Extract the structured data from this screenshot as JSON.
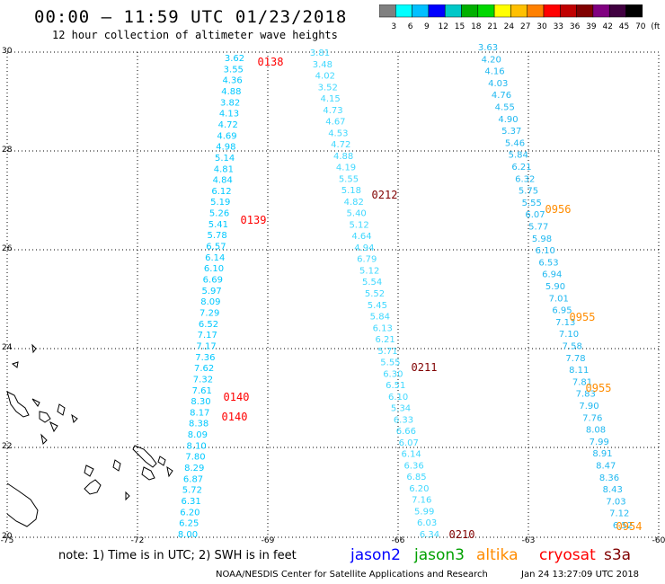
{
  "header": {
    "title": "00:00 – 11:59 UTC 01/23/2018",
    "subtitle": "12 hour collection of altimeter wave heights"
  },
  "legend": {
    "colors": [
      "#808080",
      "#00ffff",
      "#00c0ff",
      "#0000ff",
      "#00c8c8",
      "#00b000",
      "#00d800",
      "#ffff00",
      "#ffc000",
      "#ff8000",
      "#ff0000",
      "#c00000",
      "#800000",
      "#800080",
      "#400040",
      "#000000"
    ],
    "labels": [
      "3",
      "6",
      "9",
      "12",
      "15",
      "18",
      "21",
      "24",
      "27",
      "30",
      "33",
      "36",
      "39",
      "42",
      "45",
      "70",
      "(ft)"
    ]
  },
  "map": {
    "lon_labels": [
      "-75",
      "-72",
      "-69",
      "-66",
      "-63",
      "-60"
    ],
    "lat_labels": [
      "30",
      "28",
      "26",
      "24",
      "22",
      "20"
    ]
  },
  "tracks": [
    {
      "values": [
        "3.62",
        "3.55",
        "4.36",
        "4.88",
        "3.82",
        "4.13",
        "4.72",
        "4.69",
        "4.98",
        "5.14",
        "4.81",
        "4.84",
        "6.12",
        "5.19",
        "5.26",
        "5.41",
        "5.78",
        "6.57",
        "6.14",
        "6.10",
        "6.69",
        "5.97",
        "8.09",
        "7.29",
        "6.52",
        "7.17",
        "7.17",
        "7.36",
        "7.62",
        "7.32",
        "7.61",
        "8.30",
        "8.17",
        "8.38",
        "8.09",
        "8.10",
        "7.80",
        "8.29",
        "6.87",
        "5.72",
        "6.31",
        "6.20",
        "6.25",
        "8.00"
      ],
      "times": [
        "0138",
        "0139",
        "0140",
        "0140"
      ],
      "time_color": "#ff0000"
    },
    {
      "values": [
        "3.81",
        "3.48",
        "4.02",
        "3.52",
        "4.15",
        "4.73",
        "4.67",
        "4.53",
        "4.72",
        "4.88",
        "4.19",
        "5.55",
        "5.18",
        "4.82",
        "5.40",
        "5.12",
        "4.64",
        "4.94",
        "6.79",
        "5.12",
        "5.54",
        "5.52",
        "5.45",
        "5.84",
        "6.13",
        "6.21",
        "5.71",
        "5.55",
        "6.30",
        "6.51",
        "6.10",
        "5.34",
        "6.33",
        "6.66",
        "6.07",
        "6.14",
        "6.36",
        "6.85",
        "6.20",
        "7.16",
        "5.99",
        "6.03",
        "6.34"
      ],
      "times": [
        "0212",
        "0211",
        "0210"
      ],
      "time_color": "#800000"
    },
    {
      "values": [
        "3.63",
        "4.20",
        "4.16",
        "4.03",
        "4.76",
        "4.55",
        "4.90",
        "5.37",
        "5.46",
        "5.84",
        "6.21",
        "6.32",
        "5.75",
        "5.55",
        "6.07",
        "5.77",
        "5.98",
        "6.10",
        "6.53",
        "6.94",
        "5.90",
        "7.01",
        "6.95",
        "7.13",
        "7.10",
        "7.58",
        "7.78",
        "8.11",
        "7.81",
        "7.83",
        "7.90",
        "7.76",
        "8.08",
        "7.99",
        "8.91",
        "8.47",
        "8.36",
        "8.43",
        "7.03",
        "7.12",
        "6.52"
      ],
      "times": [
        "0956",
        "0955",
        "0955",
        "0954"
      ],
      "time_color": "#ff8c00"
    }
  ],
  "footer": {
    "note": "note: 1) Time is in UTC; 2) SWH is in feet",
    "satellites": [
      {
        "name": "jason2",
        "color": "#0000ff"
      },
      {
        "name": "jason3",
        "color": "#00a000"
      },
      {
        "name": "altika",
        "color": "#ff8c00"
      },
      {
        "name": "cryosat",
        "color": "#ff0000"
      },
      {
        "name": "s3a",
        "color": "#800000"
      }
    ],
    "org": "NOAA/NESDIS Center for Satellite Applications and Research",
    "date": "Jan 24 13:27:09 UTC 2018"
  }
}
